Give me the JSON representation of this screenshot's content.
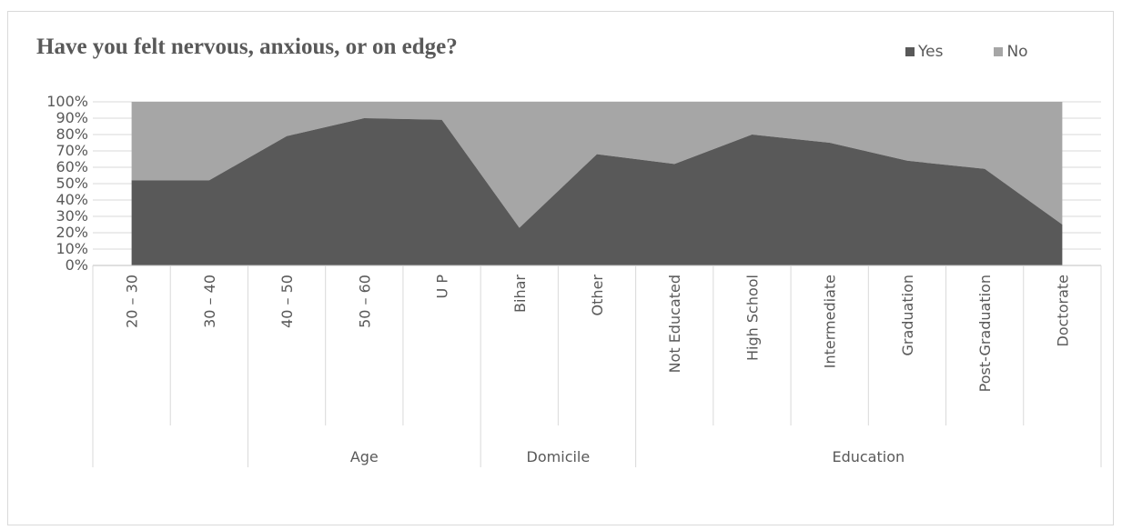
{
  "chart_data": {
    "type": "area",
    "title": "Have you felt nervous, anxious, or on edge?",
    "stacked": "percent",
    "categories": [
      "20 – 30",
      "30 – 40",
      "40 – 50",
      "50 – 60",
      "U P",
      "Bihar",
      "Other",
      "Not Educated",
      "High School",
      "Intermediate",
      "Graduation",
      "Post-Graduation",
      "Doctorate"
    ],
    "groups": [
      {
        "label": "",
        "start": 0,
        "end": 1
      },
      {
        "label": "Age",
        "start": 2,
        "end": 4
      },
      {
        "label": "Domicile",
        "start": 5,
        "end": 6
      },
      {
        "label": "Education",
        "start": 7,
        "end": 12
      }
    ],
    "series": [
      {
        "name": "Yes",
        "color": "#595959",
        "values": [
          0.52,
          0.52,
          0.79,
          0.9,
          0.89,
          0.23,
          0.68,
          0.62,
          0.8,
          0.75,
          0.64,
          0.59,
          0.25
        ]
      },
      {
        "name": "No",
        "color": "#a6a6a6",
        "values": [
          0.48,
          0.48,
          0.21,
          0.1,
          0.11,
          0.77,
          0.32,
          0.38,
          0.2,
          0.25,
          0.36,
          0.41,
          0.75
        ]
      }
    ],
    "yticks": [
      "0%",
      "10%",
      "20%",
      "30%",
      "40%",
      "50%",
      "60%",
      "70%",
      "80%",
      "90%",
      "100%"
    ],
    "ylim": [
      0,
      1
    ],
    "grid": true,
    "legend_position": "top-right"
  }
}
